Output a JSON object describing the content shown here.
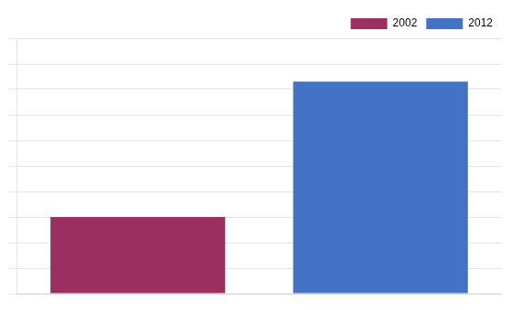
{
  "chart_data": {
    "type": "bar",
    "categories": [
      "2002",
      "2012"
    ],
    "values": [
      30,
      83
    ],
    "colors": [
      "#9B3060",
      "#4472C4"
    ],
    "ylim": [
      0,
      100
    ],
    "yticks": [
      0,
      10,
      20,
      30,
      40,
      50,
      60,
      70,
      80,
      90,
      100
    ],
    "grid": true,
    "tick_labels": false,
    "legend": "upper right"
  }
}
